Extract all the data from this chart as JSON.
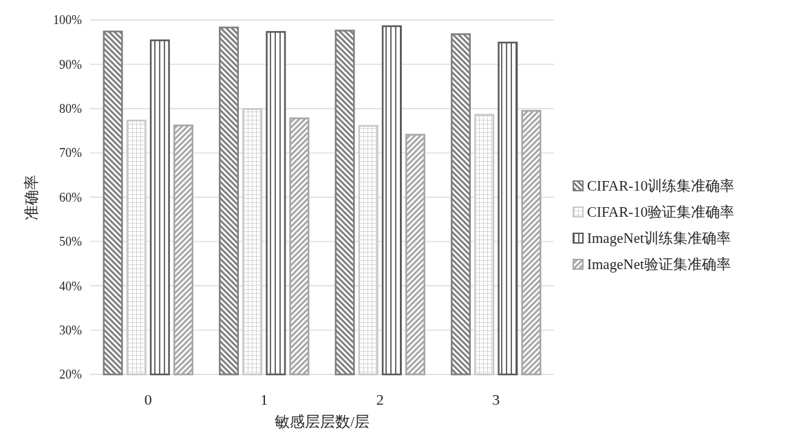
{
  "chart_data": {
    "type": "bar",
    "xlabel": "敏感层层数/层",
    "ylabel": "准确率",
    "categories": [
      "0",
      "1",
      "2",
      "3"
    ],
    "series": [
      {
        "name": "CIFAR-10训练集准确率",
        "color": "#7f7f7f",
        "values": [
          97.4,
          98.3,
          97.6,
          96.8
        ]
      },
      {
        "name": "CIFAR-10验证集准确率",
        "color": "#c8c8c8",
        "values": [
          77.3,
          79.9,
          76.1,
          78.6
        ]
      },
      {
        "name": "ImageNet训练集准确率",
        "color": "#595959",
        "values": [
          95.4,
          97.3,
          98.6,
          94.9
        ]
      },
      {
        "name": "ImageNet验证集准确率",
        "color": "#a6a6a6",
        "values": [
          76.2,
          77.8,
          74.1,
          79.5
        ]
      }
    ],
    "ylim": [
      20,
      100
    ],
    "yticks": [
      {
        "value": 20,
        "label": "20%"
      },
      {
        "value": 30,
        "label": "30%"
      },
      {
        "value": 40,
        "label": "40%"
      },
      {
        "value": 50,
        "label": "50%"
      },
      {
        "value": 60,
        "label": "60%"
      },
      {
        "value": 70,
        "label": "70%"
      },
      {
        "value": 80,
        "label": "80%"
      },
      {
        "value": 90,
        "label": "90%"
      },
      {
        "value": 100,
        "label": "100%"
      }
    ],
    "grid": "y",
    "legend": "right"
  }
}
